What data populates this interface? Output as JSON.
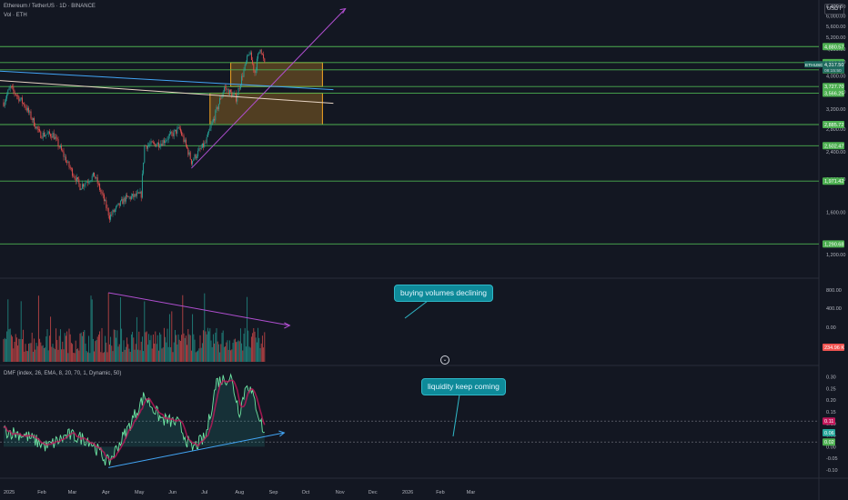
{
  "header": {
    "symbol_line": "Ethereum / TetherUS · 1D · BINANCE",
    "vol_line": "Vol · ETH",
    "dmf_line": "DMF (index, 26, EMA, 8, 20, 70, 1, Dynamic, 50)",
    "currency_button": "USDT"
  },
  "annotations": {
    "volume_note": "buying volumes declining",
    "dmf_note": "liquidity keep coming",
    "scroll_icon": "chevron-down-icon"
  },
  "colors": {
    "background": "#131722",
    "up": "#26a69a",
    "down": "#ef5350",
    "level_line": "#4caf50",
    "trendline": "#b04fd0",
    "support_trend": "#42a5f5",
    "zone": "#f5a623",
    "callout": "#0e8a99"
  },
  "chart_data": [
    {
      "type": "candlestick",
      "title": "Ethereum / TetherUS · 1D · BINANCE",
      "x_ticks": [
        "2025",
        "Feb",
        "Mar",
        "Apr",
        "May",
        "Jun",
        "Jul",
        "Aug",
        "Sep",
        "Oct",
        "Nov",
        "Dec",
        "2026",
        "Feb",
        "Mar"
      ],
      "y_ticks": [
        "6,400.00",
        "6,000.00",
        "5,600.00",
        "5,200.00",
        "4,800.00",
        "4,400.00",
        "4,000.00",
        "3,600.00",
        "3,200.00",
        "2,800.00",
        "2,400.00",
        "2,000.00",
        "1,600.00",
        "1,200.00"
      ],
      "y_range": [
        1050,
        6600
      ],
      "scale": "log",
      "horizontal_levels": [
        "4,880.57",
        "4,381.86",
        "4,174.06",
        "3,727.70",
        "3,566.25",
        "2,885.72",
        "2,502.47",
        "1,971.42",
        "1,290.68"
      ],
      "last_price_label": [
        "ETHUSDT",
        "4,317.50",
        "08:15:50"
      ],
      "zones": [
        {
          "from_date": "2025-07-28",
          "to_date": "2025-10-20",
          "low": 3727.7,
          "high": 4381.86
        },
        {
          "from_date": "2025-07-09",
          "to_date": "2025-10-20",
          "low": 2885.72,
          "high": 3566.25
        }
      ],
      "trendlines": [
        {
          "from": [
            "2025-06-22",
            2150
          ],
          "to": [
            "2025-11-10",
            6300
          ],
          "color": "#b04fd0"
        },
        {
          "from": [
            "2024-12-20",
            4150
          ],
          "to": [
            "2025-10-30",
            3650
          ],
          "color": "#42a5f5"
        },
        {
          "from": [
            "2024-12-20",
            3900
          ],
          "to": [
            "2025-10-30",
            3330
          ],
          "color": "#e8d5c4"
        }
      ],
      "ohlc_anchors": [
        {
          "date": "2025-01-01",
          "close": 3350
        },
        {
          "date": "2025-01-07",
          "close": 3700
        },
        {
          "date": "2025-01-20",
          "close": 3300
        },
        {
          "date": "2025-02-03",
          "close": 2700
        },
        {
          "date": "2025-02-15",
          "close": 2700
        },
        {
          "date": "2025-03-01",
          "close": 2200
        },
        {
          "date": "2025-03-12",
          "close": 1900
        },
        {
          "date": "2025-03-25",
          "close": 2050
        },
        {
          "date": "2025-04-08",
          "close": 1550
        },
        {
          "date": "2025-04-22",
          "close": 1750
        },
        {
          "date": "2025-05-07",
          "close": 1800
        },
        {
          "date": "2025-05-10",
          "close": 2500
        },
        {
          "date": "2025-05-25",
          "close": 2550
        },
        {
          "date": "2025-06-11",
          "close": 2800
        },
        {
          "date": "2025-06-22",
          "close": 2250
        },
        {
          "date": "2025-07-05",
          "close": 2550
        },
        {
          "date": "2025-07-14",
          "close": 3100
        },
        {
          "date": "2025-07-22",
          "close": 3700
        },
        {
          "date": "2025-08-02",
          "close": 3450
        },
        {
          "date": "2025-08-10",
          "close": 4250
        },
        {
          "date": "2025-08-14",
          "close": 4700
        },
        {
          "date": "2025-08-19",
          "close": 4100
        },
        {
          "date": "2025-08-24",
          "close": 4880
        },
        {
          "date": "2025-08-28",
          "close": 4317
        }
      ]
    },
    {
      "type": "bar",
      "title": "Vol · ETH",
      "y_ticks": [
        "800.00",
        "400.00",
        "0.00"
      ],
      "last_value_label": "234.96 K",
      "trendline": {
        "from": [
          "2025-04-07",
          0.95
        ],
        "to": [
          "2025-09-20",
          0.5
        ]
      },
      "note": "buying volumes declining"
    },
    {
      "type": "line",
      "title": "DMF (index, 26, EMA, 8, 20, 70, 1, Dynamic, 50)",
      "y_ticks": [
        "0.30",
        "0.25",
        "0.20",
        "0.15",
        "0.10",
        "0.05",
        "0.00",
        "-0.05",
        "-0.10"
      ],
      "y_range": [
        -0.12,
        0.33
      ],
      "value_labels": [
        "0.11",
        "0.06",
        "0.02"
      ],
      "reference_levels": [
        0.11,
        0.02
      ],
      "anchors": [
        {
          "date": "2025-01-01",
          "value": 0.07
        },
        {
          "date": "2025-01-20",
          "value": 0.05
        },
        {
          "date": "2025-02-10",
          "value": 0.0
        },
        {
          "date": "2025-03-01",
          "value": 0.05
        },
        {
          "date": "2025-03-20",
          "value": 0.03
        },
        {
          "date": "2025-04-07",
          "value": -0.07
        },
        {
          "date": "2025-04-25",
          "value": 0.08
        },
        {
          "date": "2025-05-10",
          "value": 0.22
        },
        {
          "date": "2025-05-25",
          "value": 0.12
        },
        {
          "date": "2025-06-10",
          "value": 0.1
        },
        {
          "date": "2025-06-22",
          "value": -0.01
        },
        {
          "date": "2025-07-05",
          "value": 0.04
        },
        {
          "date": "2025-07-15",
          "value": 0.28
        },
        {
          "date": "2025-07-28",
          "value": 0.3
        },
        {
          "date": "2025-08-05",
          "value": 0.15
        },
        {
          "date": "2025-08-12",
          "value": 0.28
        },
        {
          "date": "2025-08-20",
          "value": 0.18
        },
        {
          "date": "2025-08-28",
          "value": 0.05
        }
      ],
      "trendline": {
        "from": [
          "2025-04-07",
          -0.09
        ],
        "to": [
          "2025-09-15",
          0.06
        ]
      },
      "note": "liquidity keep coming"
    }
  ]
}
